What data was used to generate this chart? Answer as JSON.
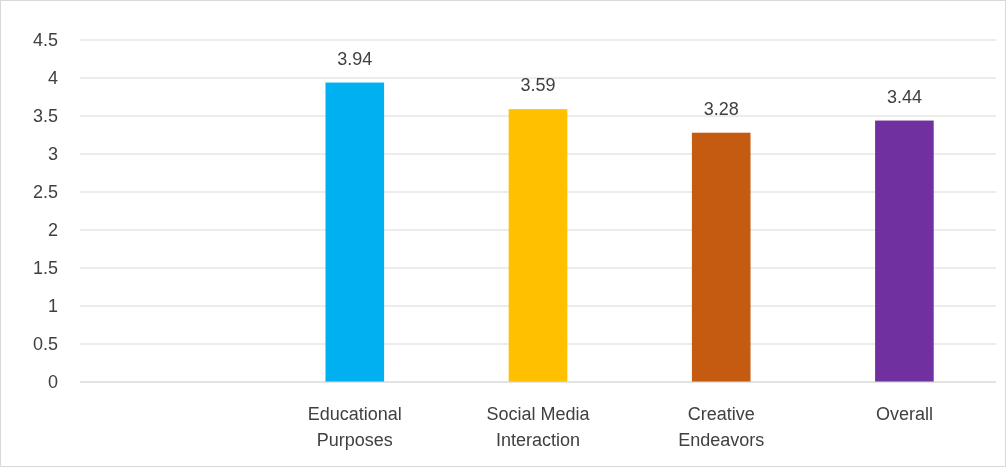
{
  "chart_data": {
    "type": "bar",
    "categories": [
      null,
      "Educational Purposes",
      "Social Media Interaction",
      "Creative Endeavors",
      "Overall"
    ],
    "values": [
      null,
      3.94,
      3.59,
      3.28,
      3.44
    ],
    "colors": [
      null,
      "#00b0f0",
      "#ffc000",
      "#c55a11",
      "#7030a0"
    ],
    "ylim": [
      0,
      4.5
    ],
    "yticks": [
      0,
      0.5,
      1,
      1.5,
      2,
      2.5,
      3,
      3.5,
      4,
      4.5
    ],
    "grid": "y",
    "data_labels": true
  }
}
